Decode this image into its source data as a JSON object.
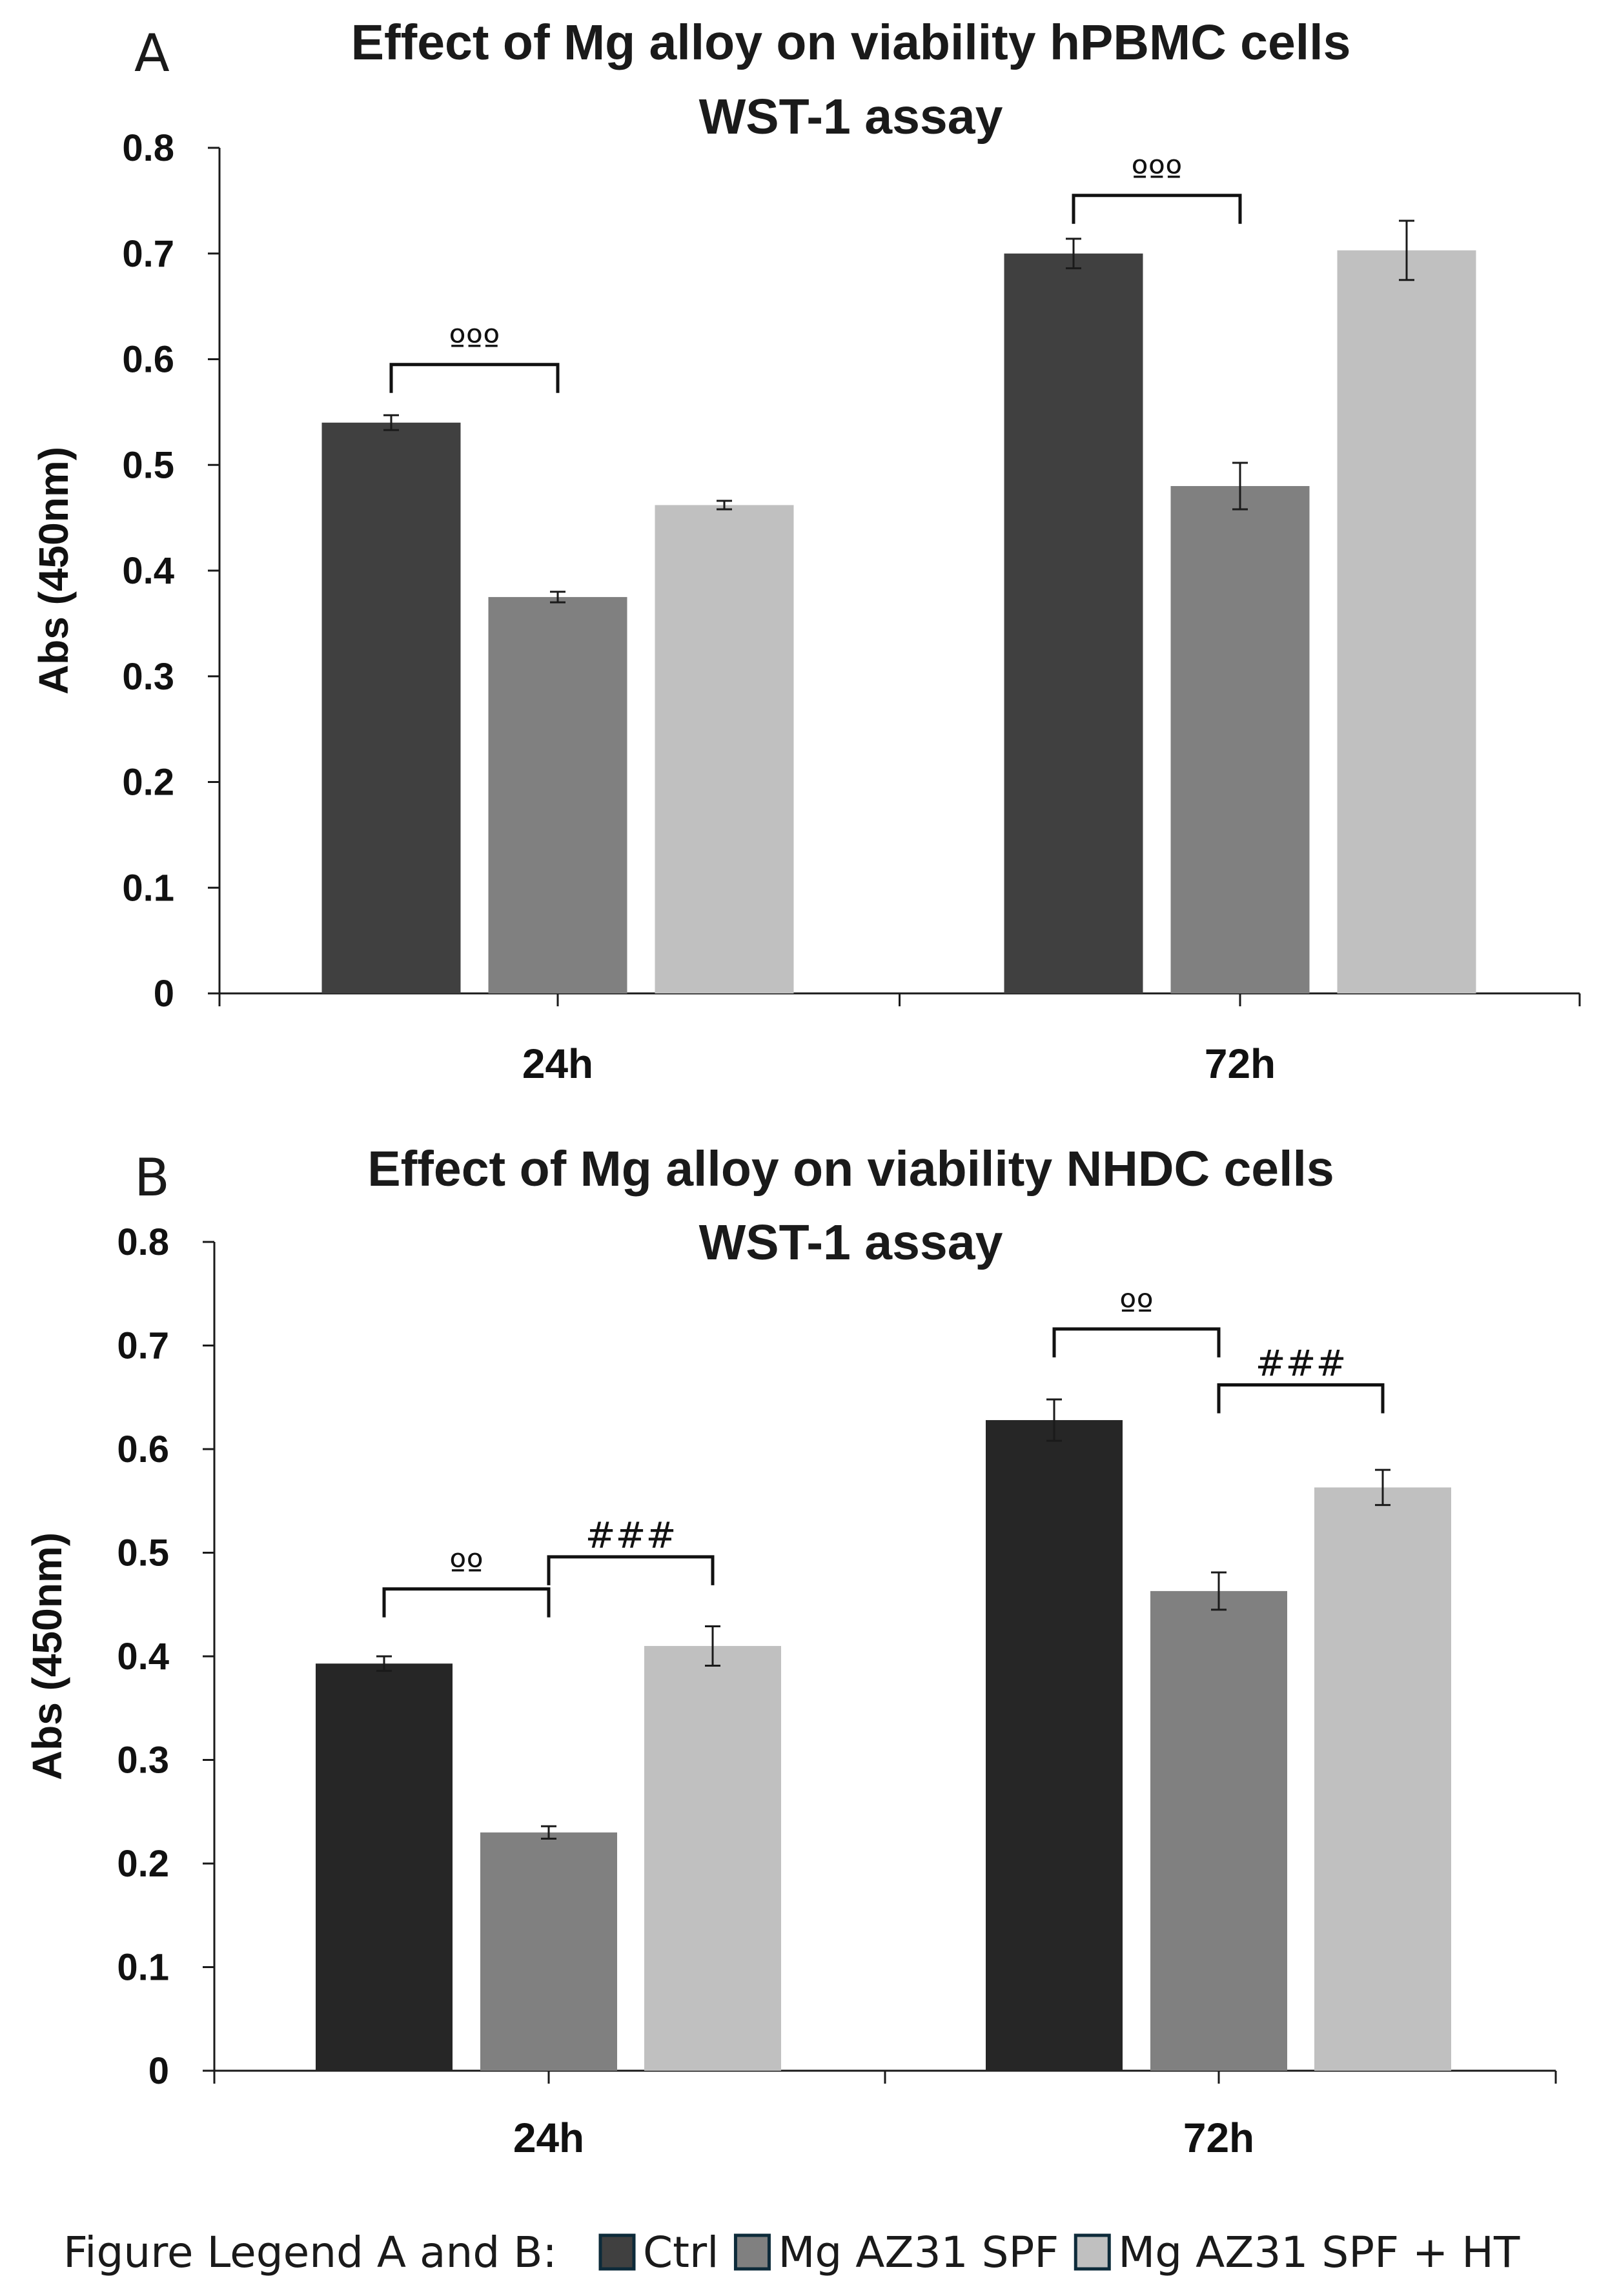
{
  "chart_data": [
    {
      "type": "bar",
      "panel_label": "A",
      "title_lines": [
        "Effect of Mg alloy on viability hPBMC cells",
        "WST-1 assay"
      ],
      "xlabel": "",
      "ylabel": "Abs (450nm)",
      "ylim": [
        0,
        0.8
      ],
      "yticks": [
        "0",
        "0.1",
        "0.2",
        "0.3",
        "0.4",
        "0.5",
        "0.6",
        "0.7",
        "0.8"
      ],
      "categories": [
        "24h",
        "72h"
      ],
      "series": [
        {
          "name": "Ctrl",
          "color": "#404040",
          "values": [
            0.54,
            0.7
          ],
          "errors": [
            0.007,
            0.014
          ]
        },
        {
          "name": "Mg AZ31 SPF",
          "color": "#808080",
          "values": [
            0.375,
            0.48
          ],
          "errors": [
            0.005,
            0.022
          ]
        },
        {
          "name": "Mg AZ31 SPF + HT",
          "color": "#c0c0c0",
          "values": [
            0.462,
            0.703
          ],
          "errors": [
            0.004,
            0.028
          ]
        }
      ],
      "annotations": [
        {
          "category": 0,
          "from": 0,
          "to": 1,
          "text": "ººº",
          "level": 0.595
        },
        {
          "category": 1,
          "from": 0,
          "to": 1,
          "text": "ººº",
          "level": 0.755
        }
      ]
    },
    {
      "type": "bar",
      "panel_label": "B",
      "title_lines": [
        "Effect of Mg alloy on viability NHDC cells",
        "WST-1 assay"
      ],
      "xlabel": "",
      "ylabel": "Abs (450nm)",
      "ylim": [
        0,
        0.8
      ],
      "yticks": [
        "0",
        "0.1",
        "0.2",
        "0.3",
        "0.4",
        "0.5",
        "0.6",
        "0.7",
        "0.8"
      ],
      "categories": [
        "24h",
        "72h"
      ],
      "series": [
        {
          "name": "Ctrl",
          "color": "#262626",
          "values": [
            0.393,
            0.628
          ],
          "errors": [
            0.007,
            0.02
          ]
        },
        {
          "name": "Mg AZ31 SPF",
          "color": "#808080",
          "values": [
            0.23,
            0.463
          ],
          "errors": [
            0.006,
            0.018
          ]
        },
        {
          "name": "Mg AZ31 SPF + HT",
          "color": "#c0c0c0",
          "values": [
            0.41,
            0.563
          ],
          "errors": [
            0.019,
            0.017
          ]
        }
      ],
      "annotations": [
        {
          "category": 0,
          "from": 0,
          "to": 1,
          "text": "ºº",
          "level": 0.465
        },
        {
          "category": 0,
          "from": 1,
          "to": 2,
          "text": "###",
          "level": 0.496
        },
        {
          "category": 1,
          "from": 0,
          "to": 1,
          "text": "ºº",
          "level": 0.716
        },
        {
          "category": 1,
          "from": 1,
          "to": 2,
          "text": "###",
          "level": 0.662
        }
      ]
    }
  ],
  "legend": {
    "prefix": "Figure Legend A and B:",
    "items": [
      {
        "label": "Ctrl",
        "color": "#404040"
      },
      {
        "label": "Mg AZ31 SPF",
        "color": "#808080"
      },
      {
        "label": "Mg AZ31 SPF + HT",
        "color": "#c0c0c0"
      }
    ]
  }
}
